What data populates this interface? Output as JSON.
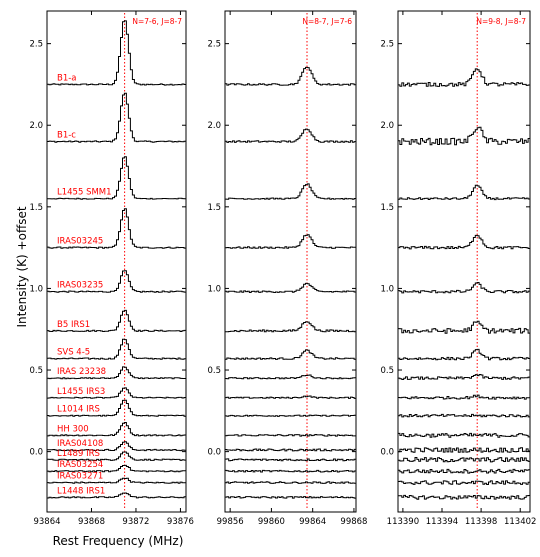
{
  "chart_data": {
    "type": "line",
    "ylabel": "Intensity (K) +offset",
    "xlabel": "Rest Frequency (MHz)",
    "ylim": [
      -0.37,
      2.7
    ],
    "yticks": [
      0.0,
      0.5,
      1.0,
      1.5,
      2.0,
      2.5
    ],
    "ytick_labels": [
      "0.0",
      "0.5",
      "1.0",
      "1.5",
      "2.0",
      "2.5"
    ],
    "grid": false,
    "sources": [
      {
        "name": "B1-a",
        "offset": 2.25,
        "peaks": [
          0.4,
          0.11,
          0.1
        ],
        "noise": [
          0.004,
          0.005,
          0.012
        ]
      },
      {
        "name": "B1-c",
        "offset": 1.9,
        "peaks": [
          0.3,
          0.08,
          0.09
        ],
        "noise": [
          0.004,
          0.005,
          0.02
        ]
      },
      {
        "name": "L1455 SMM1",
        "offset": 1.55,
        "peaks": [
          0.26,
          0.09,
          0.08
        ],
        "noise": [
          0.003,
          0.004,
          0.006
        ]
      },
      {
        "name": "IRAS03245",
        "offset": 1.25,
        "peaks": [
          0.24,
          0.08,
          0.08
        ],
        "noise": [
          0.004,
          0.005,
          0.008
        ]
      },
      {
        "name": "IRAS03235",
        "offset": 0.98,
        "peaks": [
          0.13,
          0.05,
          0.05
        ],
        "noise": [
          0.004,
          0.005,
          0.008
        ]
      },
      {
        "name": "B5 IRS1",
        "offset": 0.74,
        "peaks": [
          0.13,
          0.06,
          0.05
        ],
        "noise": [
          0.004,
          0.006,
          0.015
        ]
      },
      {
        "name": "SVS 4-5",
        "offset": 0.57,
        "peaks": [
          0.12,
          0.05,
          0.05
        ],
        "noise": [
          0.004,
          0.005,
          0.008
        ]
      },
      {
        "name": "IRAS 23238",
        "offset": 0.45,
        "peaks": [
          0.07,
          0.02,
          0.02
        ],
        "noise": [
          0.003,
          0.004,
          0.008
        ]
      },
      {
        "name": "L1455 IRS3",
        "offset": 0.33,
        "peaks": [
          0.06,
          0.01,
          0.01
        ],
        "noise": [
          0.003,
          0.004,
          0.008
        ]
      },
      {
        "name": "L1014 IRS",
        "offset": 0.22,
        "peaks": [
          0.1,
          0.0,
          0.0
        ],
        "noise": [
          0.003,
          0.004,
          0.008
        ]
      },
      {
        "name": "HH 300",
        "offset": 0.1,
        "peaks": [
          0.08,
          0.0,
          0.0
        ],
        "noise": [
          0.004,
          0.005,
          0.012
        ]
      },
      {
        "name": "IRAS04108",
        "offset": 0.01,
        "peaks": [
          0.05,
          0.0,
          0.0
        ],
        "noise": [
          0.004,
          0.006,
          0.014
        ]
      },
      {
        "name": "L1489 IRS",
        "offset": -0.05,
        "peaks": [
          0.05,
          0.0,
          0.0
        ],
        "noise": [
          0.004,
          0.006,
          0.014
        ]
      },
      {
        "name": "IRAS03254",
        "offset": -0.12,
        "peaks": [
          0.04,
          0.0,
          0.0
        ],
        "noise": [
          0.004,
          0.005,
          0.012
        ]
      },
      {
        "name": "IRAS03271",
        "offset": -0.19,
        "peaks": [
          0.03,
          0.0,
          0.0
        ],
        "noise": [
          0.004,
          0.005,
          0.012
        ]
      },
      {
        "name": "L1448 IRS1",
        "offset": -0.28,
        "peaks": [
          0.03,
          0.0,
          0.0
        ],
        "noise": [
          0.004,
          0.005,
          0.012
        ]
      }
    ],
    "panels": [
      {
        "transition": "N=7-6, J=8-7",
        "xlim": [
          93864.0,
          93876.5
        ],
        "xticks": [
          93864,
          93868,
          93872,
          93876
        ],
        "xtick_labels": [
          "93864",
          "93868",
          "93872",
          "93876"
        ],
        "line_freq": 93870.98,
        "line_width": 0.35
      },
      {
        "transition": "N=8-7, J=7-6",
        "xlim": [
          99855.5,
          99868.2
        ],
        "xticks": [
          99856,
          99860,
          99864,
          99868
        ],
        "xtick_labels": [
          "99856",
          "99860",
          "99864",
          "99868"
        ],
        "line_freq": 99863.45,
        "line_width": 0.45
      },
      {
        "transition": "N=9-8, J=8-7",
        "xlim": [
          113389.5,
          113403.0
        ],
        "xticks": [
          113390,
          113394,
          113398,
          113402
        ],
        "xtick_labels": [
          "113390",
          "113394",
          "113398",
          "113402"
        ],
        "line_freq": 113397.6,
        "line_width": 0.45
      }
    ]
  }
}
